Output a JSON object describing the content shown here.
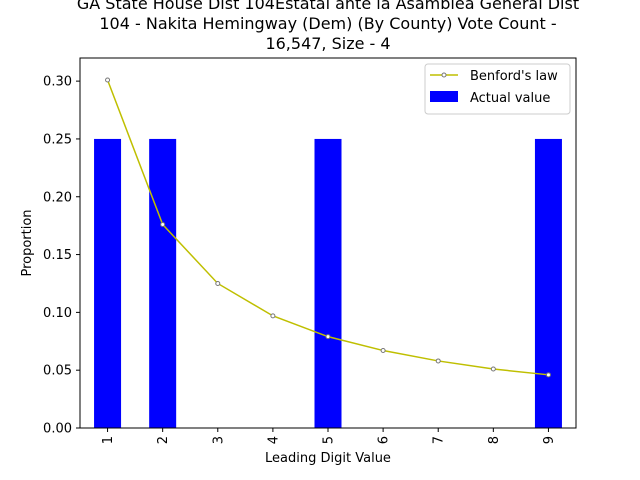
{
  "chart_data": {
    "type": "bar",
    "title_lines": [
      "GA State House Dist 104Estatal ante la Asamblea General Dist",
      "104 - Nakita Hemingway (Dem) (By County) Vote Count -",
      "16,547, Size - 4"
    ],
    "xlabel": "Leading Digit Value",
    "ylabel": "Proportion",
    "categories": [
      "1",
      "2",
      "3",
      "4",
      "5",
      "6",
      "7",
      "8",
      "9"
    ],
    "ylim": [
      0,
      0.32
    ],
    "yticks": [
      "0.00",
      "0.05",
      "0.10",
      "0.15",
      "0.20",
      "0.25",
      "0.30"
    ],
    "grid": false,
    "legend_position": "top-right",
    "series": [
      {
        "name": "Benford's law",
        "type": "line",
        "color": "#bfbf00",
        "values": [
          0.301,
          0.176,
          0.125,
          0.097,
          0.079,
          0.067,
          0.058,
          0.051,
          0.046
        ]
      },
      {
        "name": "Actual value",
        "type": "bar",
        "color": "#0000ff",
        "values": [
          0.25,
          0.25,
          0,
          0,
          0.25,
          0,
          0,
          0,
          0.25
        ]
      }
    ]
  }
}
